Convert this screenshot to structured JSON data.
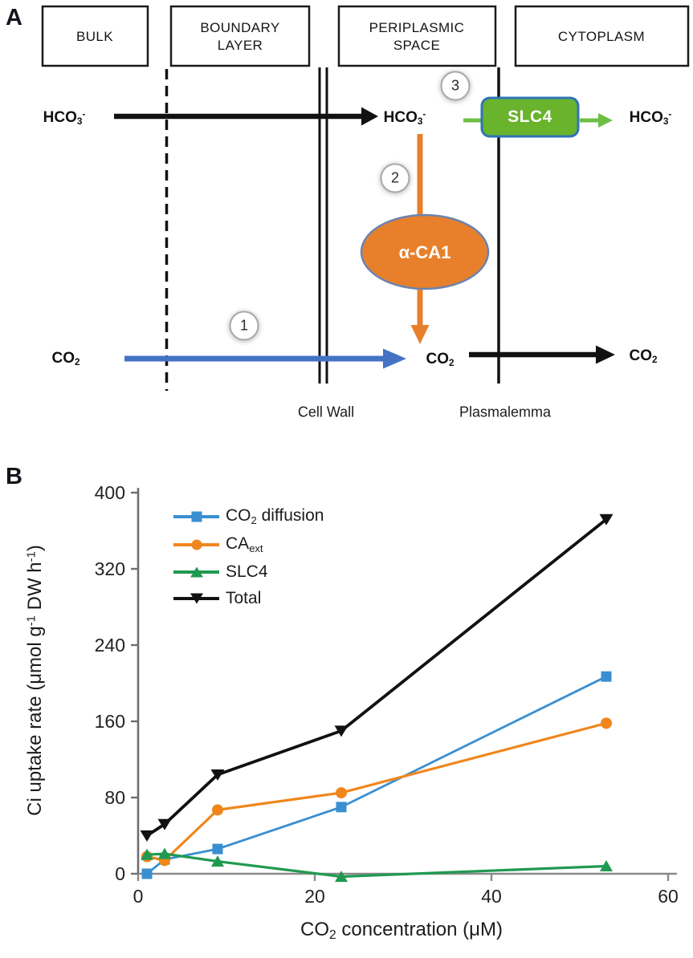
{
  "panel_a": {
    "label": "A",
    "compartments": [
      {
        "label": "BULK"
      },
      {
        "label": "BOUNDARY LAYER"
      },
      {
        "label": "PERIPLASMIC SPACE"
      },
      {
        "label": "CYTOPLASM"
      }
    ],
    "molecules": {
      "hco3": {
        "base": "HCO",
        "sub": "3",
        "sup": "-"
      },
      "co2": {
        "base": "CO",
        "sub": "2"
      }
    },
    "transporter_label": "SLC4",
    "enzyme_label": "α-CA1",
    "steps": [
      "1",
      "2",
      "3"
    ],
    "membrane_labels": {
      "cell_wall": "Cell Wall",
      "plasmalemma": "Plasmalemma"
    },
    "colors": {
      "slc4_fill": "#69B32D",
      "slc4_border": "#2E74B5",
      "green_arrow": "#6FBE44",
      "orange": "#E8802B",
      "ellipse_border": "#6C83B0",
      "blue_arrow": "#4472C4",
      "black": "#111111"
    }
  },
  "panel_b": {
    "label": "B",
    "ylabel": {
      "seg1": "Ci uptake rate (μmol g",
      "sup1": "-1",
      "seg2": " DW h",
      "sup2": "-1",
      "seg3": ")"
    },
    "xlabel": {
      "base": "CO",
      "sub": "2",
      "post": " concentration (μM)"
    }
  },
  "chart_data": {
    "type": "line",
    "title": "",
    "xlabel": "CO2 concentration (uM)",
    "ylabel": "Ci uptake rate (umol g-1 DW h-1)",
    "xlim": [
      0,
      61
    ],
    "ylim": [
      0,
      405
    ],
    "xticks": [
      0,
      20,
      40,
      60
    ],
    "yticks": [
      0,
      80,
      160,
      240,
      320,
      400
    ],
    "grid": false,
    "legend_position": "upper-left",
    "x": [
      1,
      3,
      9,
      23,
      53
    ],
    "series": [
      {
        "name": "CO2 diffusion",
        "label_parts": {
          "base": "CO",
          "sub": "2",
          "post": " diffusion"
        },
        "color": "#3A8FD0",
        "marker": "square",
        "values": [
          0,
          15,
          26,
          70,
          207
        ]
      },
      {
        "name": "CAext",
        "label_parts": {
          "base": "CA",
          "sub": "ext",
          "post": ""
        },
        "color": "#F0861C",
        "marker": "circle",
        "values": [
          18,
          14,
          67,
          85,
          158
        ]
      },
      {
        "name": "SLC4",
        "label_parts": {
          "base": "SLC4",
          "sub": "",
          "post": ""
        },
        "color": "#1F9A50",
        "marker": "triangle-up",
        "values": [
          20,
          21,
          13,
          -3,
          8
        ]
      },
      {
        "name": "Total",
        "label_parts": {
          "base": "Total",
          "sub": "",
          "post": ""
        },
        "color": "#111111",
        "marker": "triangle-down",
        "values": [
          40,
          52,
          104,
          150,
          372
        ]
      }
    ]
  }
}
